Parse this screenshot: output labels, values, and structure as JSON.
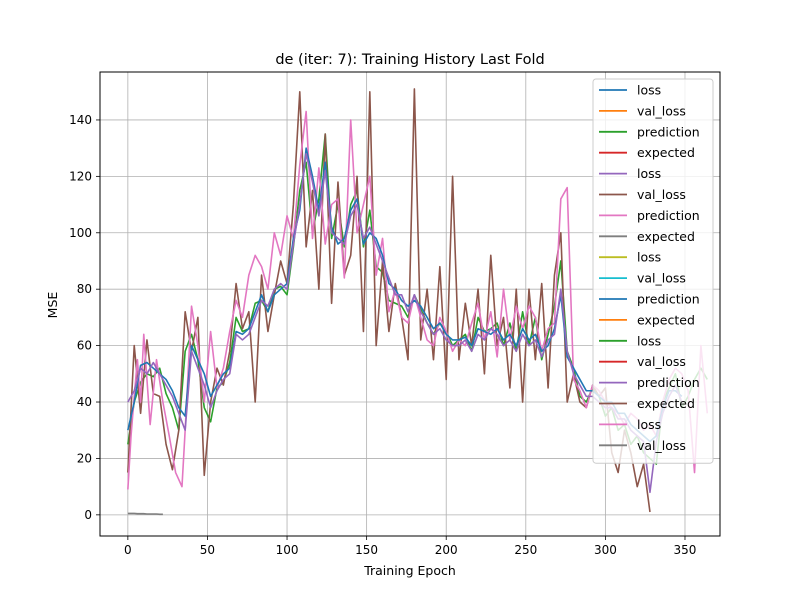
{
  "chart_data": {
    "type": "line",
    "title": "de (iter: 7): Training History Last Fold",
    "xlabel": "Training Epoch",
    "ylabel": "MSE",
    "xlim": [
      -17.5,
      372
    ],
    "ylim": [
      -7.5,
      157
    ],
    "xticks": [
      0,
      50,
      100,
      150,
      200,
      250,
      300,
      350
    ],
    "yticks": [
      0,
      20,
      40,
      60,
      80,
      100,
      120,
      140
    ],
    "grid": true,
    "legend_position": "upper-right",
    "series": [
      {
        "name": "loss",
        "color": "#1f77b4",
        "values": []
      },
      {
        "name": "val_loss",
        "color": "#ff7f0e",
        "values": []
      },
      {
        "name": "prediction",
        "color": "#2ca02c",
        "x": [
          0,
          4,
          8,
          12,
          16,
          20,
          24,
          28,
          32,
          36,
          40,
          44,
          48,
          52,
          56,
          60,
          64,
          68,
          72,
          76,
          80,
          84,
          88,
          92,
          96,
          100,
          104,
          108,
          112,
          116,
          120,
          124,
          128,
          132,
          136,
          140,
          144,
          148,
          152,
          156,
          160,
          164,
          168,
          172,
          176,
          180,
          184,
          188,
          192,
          196,
          200,
          204,
          208,
          212,
          216,
          220,
          224,
          228,
          232,
          236,
          240,
          244,
          248,
          252,
          256,
          260,
          264,
          268,
          272,
          276,
          280,
          284,
          288,
          292,
          296,
          300,
          304,
          308,
          312,
          316,
          320,
          324,
          328,
          332,
          336,
          340,
          344,
          348,
          352,
          356,
          360,
          364
        ],
        "values": [
          25,
          40,
          47,
          50,
          49,
          52,
          43,
          38,
          30,
          58,
          64,
          55,
          38,
          33,
          45,
          47,
          54,
          70,
          65,
          66,
          75,
          76,
          72,
          80,
          81,
          78,
          95,
          115,
          125,
          100,
          112,
          135,
          98,
          110,
          95,
          110,
          115,
          95,
          108,
          88,
          86,
          76,
          75,
          74,
          70,
          78,
          73,
          68,
          64,
          68,
          65,
          60,
          62,
          64,
          58,
          70,
          65,
          66,
          68,
          60,
          68,
          58,
          72,
          60,
          70,
          55,
          64,
          74,
          90,
          58,
          52,
          42,
          40,
          45,
          42,
          35,
          38,
          30,
          32,
          25,
          28,
          22,
          20,
          18,
          40,
          45,
          50,
          38,
          42,
          48,
          52,
          48
        ]
      },
      {
        "name": "expected",
        "color": "#d62728",
        "values": []
      },
      {
        "name": "loss",
        "color": "#9467bd",
        "values": []
      },
      {
        "name": "val_loss",
        "color": "#8c564b",
        "x": [
          0,
          4,
          8,
          12,
          16,
          20,
          24,
          28,
          32,
          36,
          40,
          44,
          48,
          52,
          56,
          60,
          64,
          68,
          72,
          76,
          80,
          84,
          88,
          92,
          96,
          100,
          104,
          108,
          112,
          116,
          120,
          124,
          128,
          132,
          136,
          140,
          144,
          148,
          152,
          156,
          160,
          164,
          168,
          172,
          176,
          180,
          184,
          188,
          192,
          196,
          200,
          204,
          208,
          212,
          216,
          220,
          224,
          228,
          232,
          236,
          240,
          244,
          248,
          252,
          256,
          260,
          264,
          268,
          272,
          276,
          280,
          284,
          288,
          292,
          296,
          300,
          304,
          308,
          312,
          316,
          320,
          324,
          328
        ],
        "values": [
          15,
          60,
          36,
          62,
          43,
          42,
          25,
          16,
          30,
          72,
          58,
          70,
          14,
          40,
          52,
          46,
          58,
          82,
          66,
          72,
          40,
          85,
          65,
          78,
          90,
          82,
          110,
          150,
          95,
          115,
          80,
          135,
          75,
          118,
          85,
          92,
          120,
          65,
          150,
          60,
          90,
          65,
          82,
          70,
          55,
          151,
          62,
          80,
          55,
          88,
          48,
          120,
          55,
          75,
          60,
          80,
          50,
          92,
          60,
          70,
          45,
          80,
          40,
          80,
          55,
          82,
          45,
          85,
          100,
          40,
          50,
          40,
          38,
          46,
          42,
          45,
          22,
          15,
          30,
          22,
          10,
          18,
          1
        ]
      },
      {
        "name": "prediction",
        "color": "#e377c2",
        "x": [
          0,
          2,
          4,
          6,
          8,
          10,
          14,
          18,
          22,
          26,
          30,
          34,
          36,
          40,
          44,
          48,
          52,
          56,
          60,
          64,
          68,
          72,
          76,
          80,
          84,
          88,
          92,
          96,
          100,
          104,
          108,
          112,
          116,
          120,
          124,
          128,
          132,
          136,
          140,
          144,
          148,
          152,
          156,
          160,
          164,
          168,
          172,
          176,
          180,
          184,
          188,
          192,
          196,
          200,
          204,
          208,
          212,
          216,
          220,
          224,
          228,
          232,
          236,
          240,
          244,
          248,
          252,
          256,
          260,
          264,
          268,
          272,
          276,
          280,
          284,
          288,
          292,
          296,
          300,
          304,
          308,
          312,
          316,
          320,
          324,
          328,
          332,
          336,
          340,
          344,
          348,
          352,
          356,
          360,
          364
        ],
        "values": [
          9,
          28,
          42,
          55,
          40,
          64,
          32,
          55,
          40,
          28,
          15,
          10,
          30,
          74,
          60,
          40,
          65,
          45,
          52,
          65,
          76,
          70,
          85,
          92,
          88,
          80,
          100,
          92,
          106,
          98,
          124,
          143,
          98,
          123,
          96,
          110,
          112,
          84,
          140,
          100,
          110,
          120,
          85,
          98,
          72,
          80,
          70,
          68,
          78,
          70,
          62,
          60,
          70,
          65,
          58,
          62,
          60,
          68,
          75,
          62,
          72,
          56,
          80,
          62,
          74,
          66,
          74,
          70,
          58,
          66,
          68,
          112,
          116,
          48,
          44,
          38,
          46,
          44,
          40,
          38,
          36,
          32,
          36,
          34,
          30,
          32,
          28,
          40,
          48,
          52,
          50,
          44,
          15,
          60,
          36
        ]
      },
      {
        "name": "expected",
        "color": "#7f7f7f",
        "x": [
          0,
          2,
          4,
          6,
          8,
          10,
          12,
          14,
          16,
          18,
          20,
          22
        ],
        "values": [
          0.5,
          0.5,
          0.5,
          0.4,
          0.4,
          0.4,
          0.3,
          0.3,
          0.3,
          0.3,
          0.2,
          0.2
        ]
      },
      {
        "name": "loss",
        "color": "#bcbd22",
        "values": []
      },
      {
        "name": "val_loss",
        "color": "#17becf",
        "values": []
      },
      {
        "name": "prediction",
        "color": "#1f77b4",
        "x": [
          0,
          4,
          8,
          12,
          16,
          20,
          24,
          28,
          32,
          36,
          40,
          44,
          48,
          52,
          56,
          60,
          64,
          68,
          72,
          76,
          80,
          84,
          88,
          92,
          96,
          100,
          104,
          108,
          112,
          116,
          120,
          124,
          128,
          132,
          136,
          140,
          144,
          148,
          152,
          156,
          160,
          164,
          168,
          172,
          176,
          180,
          184,
          188,
          192,
          196,
          200,
          204,
          208,
          212,
          216,
          220,
          224,
          228,
          232,
          236,
          240,
          244,
          248,
          252,
          256,
          260,
          264,
          268,
          272,
          276,
          280,
          284,
          288,
          292,
          296,
          300,
          304,
          308,
          312,
          316,
          320,
          324,
          328,
          332,
          336,
          340,
          344,
          348
        ],
        "values": [
          30,
          40,
          53,
          54,
          52,
          50,
          48,
          44,
          38,
          35,
          60,
          55,
          50,
          42,
          46,
          50,
          52,
          65,
          64,
          66,
          72,
          78,
          72,
          78,
          80,
          82,
          98,
          108,
          130,
          120,
          108,
          125,
          102,
          96,
          98,
          108,
          112,
          96,
          100,
          98,
          92,
          82,
          80,
          76,
          74,
          76,
          74,
          70,
          66,
          68,
          64,
          62,
          62,
          63,
          60,
          66,
          65,
          64,
          66,
          62,
          64,
          60,
          66,
          62,
          64,
          58,
          60,
          66,
          78,
          56,
          52,
          48,
          44,
          44,
          42,
          40,
          40,
          36,
          36,
          32,
          30,
          28,
          26,
          28,
          38,
          44,
          44,
          42
        ]
      },
      {
        "name": "expected",
        "color": "#ff7f0e",
        "values": []
      },
      {
        "name": "loss",
        "color": "#2ca02c",
        "values": []
      },
      {
        "name": "val_loss",
        "color": "#d62728",
        "values": []
      },
      {
        "name": "prediction",
        "color": "#9467bd",
        "x": [
          0,
          4,
          8,
          12,
          16,
          20,
          24,
          28,
          32,
          36,
          40,
          44,
          48,
          52,
          56,
          60,
          64,
          68,
          72,
          76,
          80,
          84,
          88,
          92,
          96,
          100,
          104,
          108,
          112,
          116,
          120,
          124,
          128,
          132,
          136,
          140,
          144,
          148,
          152,
          156,
          160,
          164,
          168,
          172,
          176,
          180,
          184,
          188,
          192,
          196,
          200,
          204,
          208,
          212,
          216,
          220,
          224,
          228,
          232,
          236,
          240,
          244,
          248,
          252,
          256,
          260,
          264,
          268,
          272,
          276,
          280,
          284,
          288,
          292,
          296,
          300,
          304,
          308,
          312,
          316,
          320,
          324,
          328,
          332,
          336,
          340,
          344,
          348
        ],
        "values": [
          40,
          44,
          52,
          50,
          54,
          50,
          46,
          42,
          36,
          30,
          58,
          52,
          46,
          38,
          44,
          48,
          50,
          64,
          62,
          64,
          70,
          76,
          74,
          80,
          82,
          80,
          96,
          110,
          128,
          118,
          106,
          122,
          100,
          98,
          96,
          106,
          110,
          98,
          102,
          96,
          90,
          84,
          78,
          78,
          72,
          78,
          72,
          68,
          64,
          66,
          62,
          60,
          60,
          62,
          58,
          64,
          62,
          66,
          64,
          60,
          62,
          58,
          64,
          60,
          62,
          56,
          62,
          64,
          80,
          58,
          50,
          46,
          42,
          42,
          40,
          38,
          38,
          34,
          34,
          30,
          28,
          26,
          8,
          26,
          36,
          42,
          46,
          40
        ]
      },
      {
        "name": "expected",
        "color": "#8c564b",
        "values": []
      },
      {
        "name": "loss",
        "color": "#e377c2",
        "values": []
      },
      {
        "name": "val_loss",
        "color": "#7f7f7f",
        "values": []
      }
    ]
  }
}
